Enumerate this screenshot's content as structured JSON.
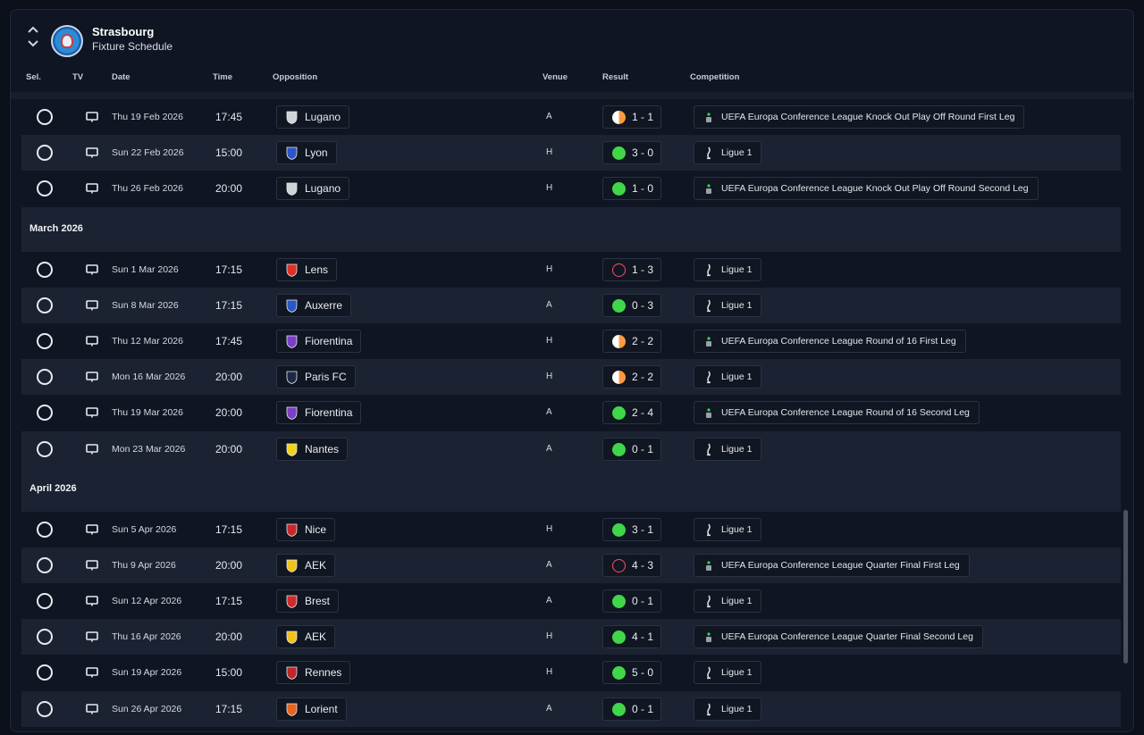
{
  "header": {
    "club": "Strasbourg",
    "subtitle": "Fixture Schedule"
  },
  "columns": {
    "sel": "Sel.",
    "tv": "TV",
    "date": "Date",
    "time": "Time",
    "opposition": "Opposition",
    "venue": "Venue",
    "result": "Result",
    "competition": "Competition"
  },
  "colors": {
    "win": "#3fd64a",
    "loss": "#ff5060",
    "draw": "#ff9a40",
    "background": "#0f1522"
  },
  "groups": [
    {
      "month": "",
      "fixtures": [
        {
          "date": "Thu 19 Feb 2026",
          "time": "17:45",
          "opposition": "Lugano",
          "opp_icon": "lugano-crest-icon",
          "venue": "A",
          "result": "1 - 1",
          "outcome": "draw",
          "competition": "UEFA Europa Conference League Knock Out Play Off Round First Leg",
          "comp_icon": "conference-league-trophy-icon"
        },
        {
          "date": "Sun 22 Feb 2026",
          "time": "15:00",
          "opposition": "Lyon",
          "opp_icon": "lyon-crest-icon",
          "venue": "H",
          "result": "3 - 0",
          "outcome": "win",
          "competition": "Ligue 1",
          "comp_icon": "ligue1-icon"
        },
        {
          "date": "Thu 26 Feb 2026",
          "time": "20:00",
          "opposition": "Lugano",
          "opp_icon": "lugano-crest-icon",
          "venue": "H",
          "result": "1 - 0",
          "outcome": "win",
          "competition": "UEFA Europa Conference League Knock Out Play Off Round Second Leg",
          "comp_icon": "conference-league-trophy-icon"
        }
      ]
    },
    {
      "month": "March 2026",
      "fixtures": [
        {
          "date": "Sun 1 Mar 2026",
          "time": "17:15",
          "opposition": "Lens",
          "opp_icon": "lens-crest-icon",
          "venue": "H",
          "result": "1 - 3",
          "outcome": "loss",
          "competition": "Ligue 1",
          "comp_icon": "ligue1-icon"
        },
        {
          "date": "Sun 8 Mar 2026",
          "time": "17:15",
          "opposition": "Auxerre",
          "opp_icon": "auxerre-crest-icon",
          "venue": "A",
          "result": "0 - 3",
          "outcome": "win",
          "competition": "Ligue 1",
          "comp_icon": "ligue1-icon"
        },
        {
          "date": "Thu 12 Mar 2026",
          "time": "17:45",
          "opposition": "Fiorentina",
          "opp_icon": "fiorentina-crest-icon",
          "venue": "H",
          "result": "2 - 2",
          "outcome": "draw",
          "competition": "UEFA Europa Conference League Round of 16  First Leg",
          "comp_icon": "conference-league-trophy-icon"
        },
        {
          "date": "Mon 16 Mar 2026",
          "time": "20:00",
          "opposition": "Paris FC",
          "opp_icon": "paris-fc-crest-icon",
          "venue": "H",
          "result": "2 - 2",
          "outcome": "draw",
          "competition": "Ligue 1",
          "comp_icon": "ligue1-icon"
        },
        {
          "date": "Thu 19 Mar 2026",
          "time": "20:00",
          "opposition": "Fiorentina",
          "opp_icon": "fiorentina-crest-icon",
          "venue": "A",
          "result": "2 - 4",
          "outcome": "win",
          "competition": "UEFA Europa Conference League Round of 16  Second Leg",
          "comp_icon": "conference-league-trophy-icon"
        },
        {
          "date": "Mon 23 Mar 2026",
          "time": "20:00",
          "opposition": "Nantes",
          "opp_icon": "nantes-crest-icon",
          "venue": "A",
          "result": "0 - 1",
          "outcome": "win",
          "competition": "Ligue 1",
          "comp_icon": "ligue1-icon"
        }
      ]
    },
    {
      "month": "April 2026",
      "fixtures": [
        {
          "date": "Sun 5 Apr 2026",
          "time": "17:15",
          "opposition": "Nice",
          "opp_icon": "nice-crest-icon",
          "venue": "H",
          "result": "3 - 1",
          "outcome": "win",
          "competition": "Ligue 1",
          "comp_icon": "ligue1-icon"
        },
        {
          "date": "Thu 9 Apr 2026",
          "time": "20:00",
          "opposition": "AEK",
          "opp_icon": "aek-crest-icon",
          "venue": "A",
          "result": "4 - 3",
          "outcome": "loss",
          "competition": "UEFA Europa Conference League Quarter Final First Leg",
          "comp_icon": "conference-league-trophy-icon"
        },
        {
          "date": "Sun 12 Apr 2026",
          "time": "17:15",
          "opposition": "Brest",
          "opp_icon": "brest-crest-icon",
          "venue": "A",
          "result": "0 - 1",
          "outcome": "win",
          "competition": "Ligue 1",
          "comp_icon": "ligue1-icon"
        },
        {
          "date": "Thu 16 Apr 2026",
          "time": "20:00",
          "opposition": "AEK",
          "opp_icon": "aek-crest-icon",
          "venue": "H",
          "result": "4 - 1",
          "outcome": "win",
          "competition": "UEFA Europa Conference League Quarter Final Second Leg",
          "comp_icon": "conference-league-trophy-icon"
        },
        {
          "date": "Sun 19 Apr 2026",
          "time": "15:00",
          "opposition": "Rennes",
          "opp_icon": "rennes-crest-icon",
          "venue": "H",
          "result": "5 - 0",
          "outcome": "win",
          "competition": "Ligue 1",
          "comp_icon": "ligue1-icon"
        },
        {
          "date": "Sun 26 Apr 2026",
          "time": "17:15",
          "opposition": "Lorient",
          "opp_icon": "lorient-crest-icon",
          "venue": "A",
          "result": "0 - 1",
          "outcome": "win",
          "competition": "Ligue 1",
          "comp_icon": "ligue1-icon"
        }
      ]
    }
  ]
}
